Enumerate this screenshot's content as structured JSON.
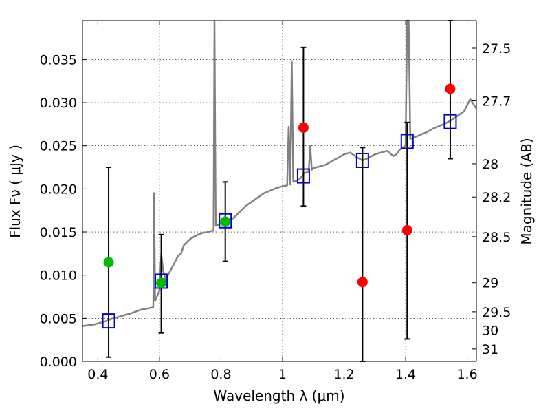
{
  "chart_data": {
    "type": "scatter",
    "xlabel": "Wavelength  λ (μm)",
    "ylabel": "Flux  Fν  ( μJy )",
    "ylabel_right": "Magnitude (AB)",
    "xlim": [
      0.35,
      1.63
    ],
    "ylim": [
      0.0,
      0.0395
    ],
    "grid": true,
    "colors": {
      "sed": "#808080",
      "model": "#0000cc",
      "detection": "#00bb00",
      "upper": "#ff0000",
      "errorbar": "#000000"
    },
    "x_ticks": [
      {
        "v": 0.4,
        "label": "0.4"
      },
      {
        "v": 0.6,
        "label": "0.6"
      },
      {
        "v": 0.8,
        "label": "0.8"
      },
      {
        "v": 1.0,
        "label": "1"
      },
      {
        "v": 1.2,
        "label": "1.2"
      },
      {
        "v": 1.4,
        "label": "1.4"
      },
      {
        "v": 1.6,
        "label": "1.6"
      }
    ],
    "y_ticks": [
      {
        "v": 0.0,
        "label": "0.000"
      },
      {
        "v": 0.005,
        "label": "0.005"
      },
      {
        "v": 0.01,
        "label": "0.010"
      },
      {
        "v": 0.015,
        "label": "0.015"
      },
      {
        "v": 0.02,
        "label": "0.020"
      },
      {
        "v": 0.025,
        "label": "0.025"
      },
      {
        "v": 0.03,
        "label": "0.030"
      },
      {
        "v": 0.035,
        "label": "0.035"
      }
    ],
    "mag_ticks": [
      {
        "mag": 27.5,
        "label": "27.5"
      },
      {
        "mag": 27.7,
        "label": "27.7"
      },
      {
        "mag": 28.0,
        "label": "28"
      },
      {
        "mag": 28.2,
        "label": "28.2"
      },
      {
        "mag": 28.5,
        "label": "28.5"
      },
      {
        "mag": 29.0,
        "label": "29"
      },
      {
        "mag": 29.5,
        "label": "29.5"
      },
      {
        "mag": 30.0,
        "label": "30"
      },
      {
        "mag": 31.0,
        "label": "31"
      }
    ],
    "sed_curve": [
      [
        0.35,
        0.0041
      ],
      [
        0.37,
        0.0042
      ],
      [
        0.39,
        0.0043
      ],
      [
        0.42,
        0.0046
      ],
      [
        0.45,
        0.005
      ],
      [
        0.48,
        0.0053
      ],
      [
        0.51,
        0.0056
      ],
      [
        0.54,
        0.006
      ],
      [
        0.57,
        0.0062
      ],
      [
        0.58,
        0.0063
      ],
      [
        0.583,
        0.0195
      ],
      [
        0.586,
        0.007
      ],
      [
        0.6,
        0.0082
      ],
      [
        0.606,
        0.0125
      ],
      [
        0.612,
        0.0105
      ],
      [
        0.62,
        0.0095
      ],
      [
        0.64,
        0.0108
      ],
      [
        0.66,
        0.0122
      ],
      [
        0.67,
        0.0125
      ],
      [
        0.68,
        0.0135
      ],
      [
        0.7,
        0.0142
      ],
      [
        0.72,
        0.0146
      ],
      [
        0.74,
        0.0149
      ],
      [
        0.76,
        0.015
      ],
      [
        0.776,
        0.0152
      ],
      [
        0.779,
        0.0395
      ],
      [
        0.783,
        0.0157
      ],
      [
        0.8,
        0.016
      ],
      [
        0.82,
        0.0163
      ],
      [
        0.84,
        0.0166
      ],
      [
        0.86,
        0.0173
      ],
      [
        0.88,
        0.018
      ],
      [
        0.9,
        0.0185
      ],
      [
        0.92,
        0.019
      ],
      [
        0.94,
        0.0195
      ],
      [
        0.96,
        0.0198
      ],
      [
        0.98,
        0.0201
      ],
      [
        1.0,
        0.0203
      ],
      [
        1.015,
        0.0204
      ],
      [
        1.02,
        0.0272
      ],
      [
        1.025,
        0.0205
      ],
      [
        1.03,
        0.0348
      ],
      [
        1.035,
        0.0208
      ],
      [
        1.05,
        0.021
      ],
      [
        1.06,
        0.0213
      ],
      [
        1.07,
        0.0218
      ],
      [
        1.085,
        0.022
      ],
      [
        1.09,
        0.025
      ],
      [
        1.095,
        0.0222
      ],
      [
        1.1,
        0.0224
      ],
      [
        1.12,
        0.0226
      ],
      [
        1.14,
        0.0228
      ],
      [
        1.16,
        0.0232
      ],
      [
        1.18,
        0.0236
      ],
      [
        1.2,
        0.024
      ],
      [
        1.22,
        0.0242
      ],
      [
        1.24,
        0.0237
      ],
      [
        1.26,
        0.0233
      ],
      [
        1.28,
        0.0236
      ],
      [
        1.3,
        0.024
      ],
      [
        1.32,
        0.0242
      ],
      [
        1.34,
        0.0244
      ],
      [
        1.36,
        0.0238
      ],
      [
        1.37,
        0.024
      ],
      [
        1.38,
        0.0245
      ],
      [
        1.4,
        0.025
      ],
      [
        1.405,
        0.0395
      ],
      [
        1.41,
        0.0395
      ],
      [
        1.415,
        0.0258
      ],
      [
        1.43,
        0.026
      ],
      [
        1.45,
        0.0263
      ],
      [
        1.47,
        0.0266
      ],
      [
        1.49,
        0.027
      ],
      [
        1.51,
        0.0273
      ],
      [
        1.53,
        0.0276
      ],
      [
        1.55,
        0.028
      ],
      [
        1.57,
        0.0285
      ],
      [
        1.59,
        0.029
      ],
      [
        1.61,
        0.0304
      ],
      [
        1.63,
        0.0293
      ]
    ],
    "model_points": [
      {
        "x": 0.435,
        "y": 0.0047
      },
      {
        "x": 0.606,
        "y": 0.0093
      },
      {
        "x": 0.814,
        "y": 0.0163
      },
      {
        "x": 1.068,
        "y": 0.0215
      },
      {
        "x": 1.26,
        "y": 0.0233
      },
      {
        "x": 1.405,
        "y": 0.0255
      },
      {
        "x": 1.545,
        "y": 0.0278
      }
    ],
    "detections": [
      {
        "x": 0.435,
        "y": 0.0115,
        "err_lo": 0.0005,
        "err_hi": 0.0225
      },
      {
        "x": 0.606,
        "y": 0.0091,
        "err_lo": 0.0033,
        "err_hi": 0.0147
      },
      {
        "x": 0.814,
        "y": 0.0162,
        "err_lo": 0.0116,
        "err_hi": 0.0208
      }
    ],
    "upper_limits": [
      {
        "x": 1.068,
        "y": 0.0271,
        "err_lo": 0.018,
        "err_hi": 0.0364
      },
      {
        "x": 1.26,
        "y": 0.0092,
        "err_lo": 0.0,
        "err_hi": 0.0248
      },
      {
        "x": 1.405,
        "y": 0.0152,
        "err_lo": 0.0026,
        "err_hi": 0.0277
      },
      {
        "x": 1.545,
        "y": 0.0316,
        "err_lo": 0.0235,
        "err_hi": 0.0395
      }
    ]
  }
}
